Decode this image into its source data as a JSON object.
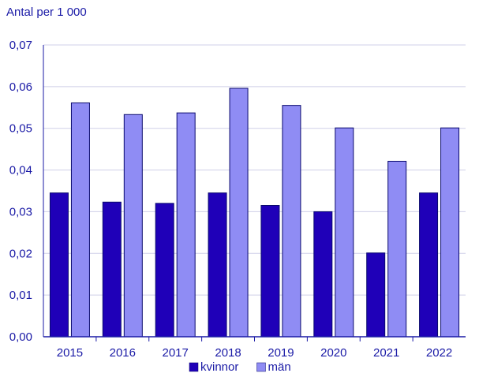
{
  "chart_data": {
    "type": "bar",
    "ylabel": "Antal per 1 000",
    "categories": [
      "2015",
      "2016",
      "2017",
      "2018",
      "2019",
      "2020",
      "2021",
      "2022"
    ],
    "series": [
      {
        "name": "kvinnor",
        "color": "#1f00b8",
        "values": [
          0.0345,
          0.0323,
          0.032,
          0.0345,
          0.0315,
          0.03,
          0.0201,
          0.0345
        ]
      },
      {
        "name": "män",
        "color": "#8f8cf4",
        "values": [
          0.0561,
          0.0533,
          0.0537,
          0.0596,
          0.0555,
          0.0501,
          0.0421,
          0.0501
        ]
      }
    ],
    "ylim": [
      0,
      0.07
    ],
    "yticks": [
      "0,00",
      "0,01",
      "0,02",
      "0,03",
      "0,04",
      "0,05",
      "0,06",
      "0,07"
    ],
    "grid": true,
    "legend_position": "bottom-center"
  }
}
